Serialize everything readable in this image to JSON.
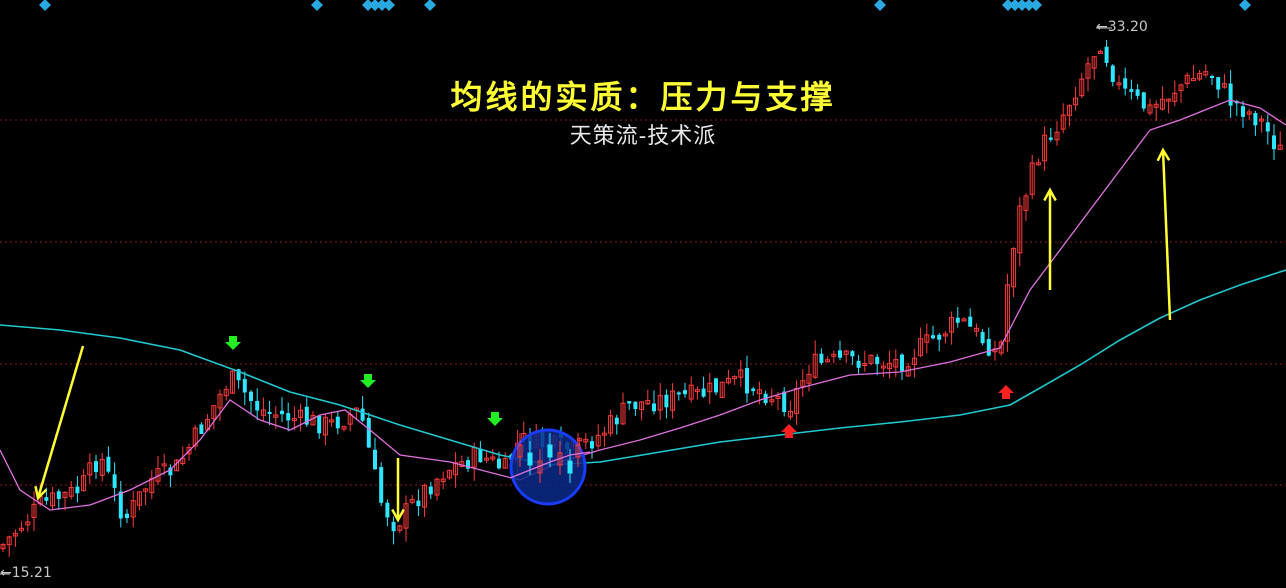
{
  "title": "均线的实质：压力与支撑",
  "subtitle": "天策流-技术派",
  "high_label": "33.20",
  "low_label": "15.21",
  "colors": {
    "background": "#000000",
    "up_candle": "#ff3b3b",
    "down_candle": "#2ee6ff",
    "ma_short": "#e070e0",
    "ma_long": "#20c8d0",
    "grid": "#8a1a1a",
    "yellow_arrow": "#ffff33",
    "green_marker": "#22ee22",
    "red_marker": "#ff2020",
    "diamond": "#2aa8e0",
    "circle_fill": "#0a2a8a",
    "circle_stroke": "#1a3cff"
  },
  "chart_data": {
    "type": "candlestick",
    "y_high": 33.2,
    "y_low": 15.21,
    "series": [
      {
        "name": "",
        "kind": "moving-average-short"
      },
      {
        "name": "",
        "kind": "moving-average-long"
      }
    ],
    "trend_phases": [
      "down",
      "range",
      "up"
    ],
    "annotations": [
      {
        "type": "arrow",
        "color": "yellow",
        "direction": "down"
      },
      {
        "type": "arrow",
        "color": "yellow",
        "direction": "down"
      },
      {
        "type": "arrow",
        "color": "yellow",
        "direction": "up"
      },
      {
        "type": "arrow",
        "color": "yellow",
        "direction": "up"
      },
      {
        "type": "marker",
        "color": "green",
        "direction": "down",
        "count": 3
      },
      {
        "type": "marker",
        "color": "red",
        "direction": "up",
        "count": 2
      },
      {
        "type": "circle",
        "color": "blue"
      }
    ]
  }
}
